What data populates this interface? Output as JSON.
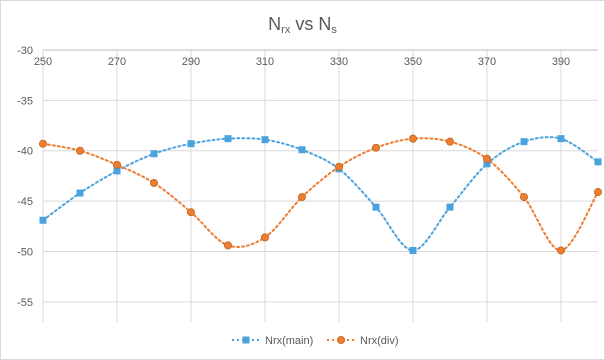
{
  "chart_data": {
    "type": "line",
    "title": {
      "base1": "N",
      "sub1": "rx",
      "mid": " vs N",
      "sub2": "s"
    },
    "xlabel": "",
    "ylabel": "",
    "x_ticks": [
      250,
      270,
      290,
      310,
      330,
      350,
      370,
      390
    ],
    "y_ticks": [
      -30,
      -35,
      -40,
      -45,
      -50,
      -55
    ],
    "xlim": [
      250,
      400
    ],
    "ylim": [
      -57,
      -30
    ],
    "x_axis_at_top": true,
    "grid": true,
    "legend_position": "bottom",
    "series": [
      {
        "name": "Nrx(main)",
        "color": "#4aa3df",
        "marker": "square",
        "x": [
          250,
          260,
          270,
          280,
          290,
          300,
          310,
          320,
          330,
          340,
          350,
          360,
          370,
          380,
          390,
          400
        ],
        "values": [
          -46.9,
          -44.2,
          -42.0,
          -40.3,
          -39.3,
          -38.8,
          -38.9,
          -39.9,
          -41.8,
          -45.6,
          -49.9,
          -45.6,
          -41.3,
          -39.1,
          -38.8,
          -41.1
        ]
      },
      {
        "name": "Nrx(div)",
        "color": "#ed7d31",
        "marker": "circle",
        "x": [
          250,
          260,
          270,
          280,
          290,
          300,
          310,
          320,
          330,
          340,
          350,
          360,
          370,
          380,
          390,
          400
        ],
        "values": [
          -39.3,
          -40.0,
          -41.4,
          -43.2,
          -46.1,
          -49.4,
          -48.6,
          -44.6,
          -41.6,
          -39.7,
          -38.8,
          -39.1,
          -40.8,
          -44.6,
          -49.9,
          -44.1
        ]
      }
    ]
  }
}
